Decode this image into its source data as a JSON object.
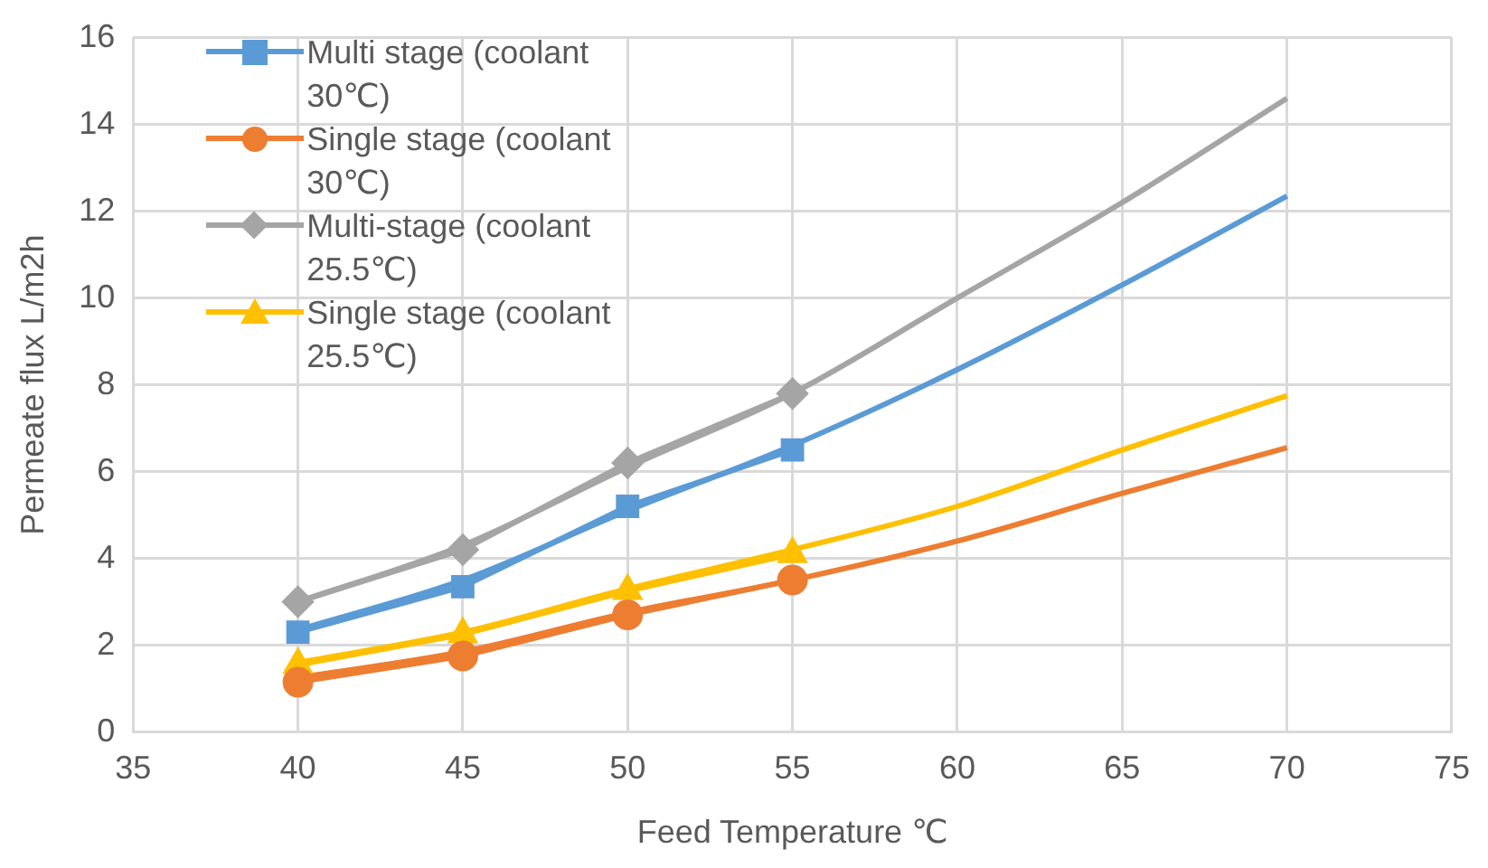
{
  "chart_data": {
    "type": "line",
    "xlabel": "Feed Temperature ℃",
    "ylabel": "Permeate flux L/m2h",
    "xlim": [
      35,
      75
    ],
    "xticks": [
      35,
      40,
      45,
      50,
      55,
      60,
      65,
      70,
      75
    ],
    "ylim": [
      0,
      16
    ],
    "yticks": [
      0,
      2,
      4,
      6,
      8,
      10,
      12,
      14,
      16
    ],
    "grid": true,
    "legend": "top left",
    "line_style": "solid",
    "series": [
      {
        "name": "Multi stage (coolant 30℃)",
        "color": "#5b9bd5",
        "marker": "square",
        "x": [
          40,
          45,
          50,
          55
        ],
        "values": [
          2.3,
          3.35,
          5.2,
          6.5
        ]
      },
      {
        "name": "Single stage (coolant 30℃)",
        "color": "#ed7d31",
        "marker": "circle",
        "x": [
          40,
          45,
          50,
          55
        ],
        "values": [
          1.15,
          1.75,
          2.7,
          3.5
        ]
      },
      {
        "name": "Multi-stage (coolant 25.5℃)",
        "color": "#a5a5a5",
        "marker": "diamond",
        "x": [
          40,
          45,
          50,
          55
        ],
        "values": [
          3.0,
          4.2,
          6.2,
          7.8
        ]
      },
      {
        "name": "Single stage (coolant 25.5℃)",
        "color": "#ffc000",
        "marker": "triangle",
        "x": [
          40,
          45,
          50,
          55
        ],
        "values": [
          1.55,
          2.25,
          3.25,
          4.1
        ]
      },
      {
        "color": "#5b9bd5",
        "marker": "none",
        "x": [
          40,
          45,
          50,
          55,
          60,
          65,
          70
        ],
        "values": [
          2.35,
          3.5,
          5.1,
          6.6,
          8.35,
          10.3,
          12.35
        ]
      },
      {
        "color": "#ed7d31",
        "marker": "none",
        "x": [
          40,
          45,
          50,
          55,
          60,
          65,
          70
        ],
        "values": [
          1.25,
          1.85,
          2.75,
          3.5,
          4.4,
          5.5,
          6.55
        ]
      },
      {
        "color": "#a5a5a5",
        "marker": "none",
        "x": [
          40,
          45,
          50,
          55,
          60,
          65,
          70
        ],
        "values": [
          3.0,
          4.3,
          6.1,
          7.8,
          10.0,
          12.2,
          14.6
        ]
      },
      {
        "color": "#ffc000",
        "marker": "none",
        "x": [
          40,
          45,
          50,
          55,
          60,
          65,
          70
        ],
        "values": [
          1.6,
          2.3,
          3.3,
          4.2,
          5.2,
          6.5,
          7.75
        ]
      }
    ]
  }
}
